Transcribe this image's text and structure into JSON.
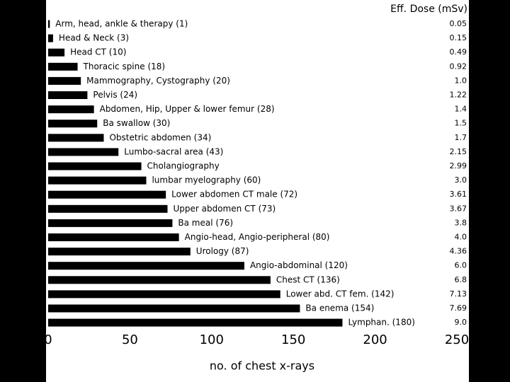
{
  "chart_data": {
    "type": "bar",
    "orientation": "horizontal",
    "title": "Eff. Dose (mSv)",
    "x_label": "no. of chest x-rays",
    "categories": [
      "Arm, head, ankle & therapy (1)",
      "Head & Neck (3)",
      "Head CT (10)",
      "Thoracic spine (18)",
      "Mammography, Cystography (20)",
      "Pelvis (24)",
      "Abdomen, Hip, Upper & lower femur (28)",
      "Ba swallow (30)",
      "Obstetric abdomen (34)",
      "Lumbo-sacral area (43)",
      "Cholangiography",
      "lumbar myelography (60)",
      "Lower abdomen CT male (72)",
      "Upper abdomen CT (73)",
      "Ba meal (76)",
      "Angio-head, Angio-peripheral (80)",
      "Urology (87)",
      "Angio-abdominal (120)",
      "Chest CT (136)",
      "Lower abd. CT fem. (142)",
      "Ba enema (154)",
      "Lymphan. (180)"
    ],
    "values": [
      1,
      3,
      10,
      18,
      20,
      24,
      28,
      30,
      34,
      43,
      57,
      60,
      72,
      73,
      76,
      80,
      87,
      120,
      136,
      142,
      154,
      180
    ],
    "doses": [
      "0.05",
      "0.15",
      "0.49",
      "0.92",
      "1.0",
      "1.22",
      "1.4",
      "1.5",
      "1.7",
      "2.15",
      "2.99",
      "3.0",
      "3.61",
      "3.67",
      "3.8",
      "4.0",
      "4.36",
      "6.0",
      "6.8",
      "7.13",
      "7.69",
      "9.0"
    ],
    "color": "#000000",
    "xlim": [
      0,
      250
    ],
    "xticks": [
      0,
      50,
      100,
      150,
      200,
      250
    ],
    "grid": false
  }
}
